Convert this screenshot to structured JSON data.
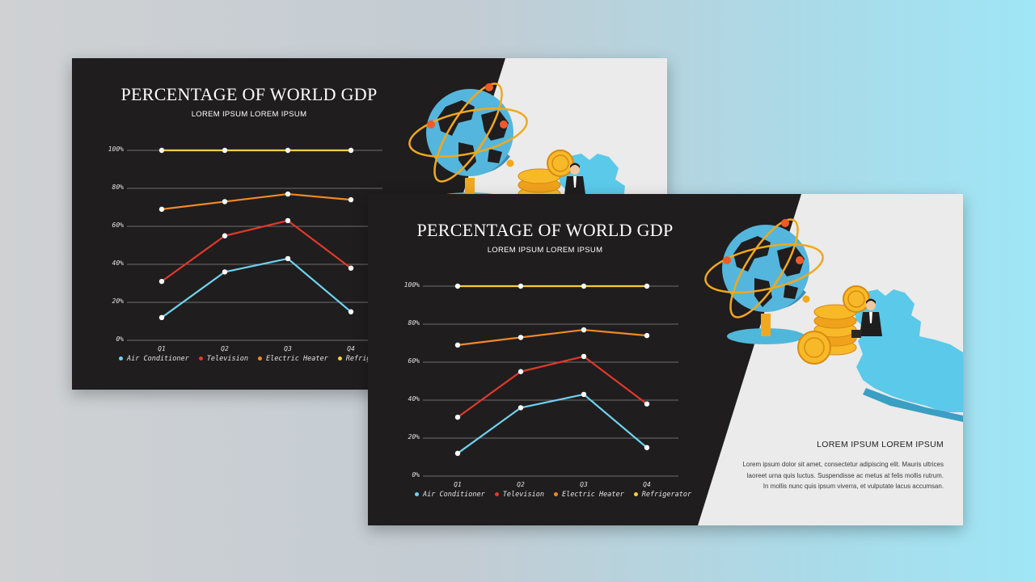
{
  "slides": [
    {
      "title": "PERCENTAGE OF WORLD GDP",
      "subtitle": "LOREM IPSUM LOREM IPSUM",
      "side_heading": "",
      "side_body": ""
    },
    {
      "title": "PERCENTAGE OF WORLD GDP",
      "subtitle": "LOREM IPSUM LOREM IPSUM",
      "side_heading": "LOREM IPSUM LOREM IPSUM",
      "side_body": "Lorem ipsum dolor sit amet, consectetur adipiscing elit. Mauris ultrices laoreet urna quis luctus. Suspendisse ac metus at felis mollis rutrum. In mollis nunc quis ipsum viverra, et vulputate lacus accumsan."
    }
  ],
  "colors": {
    "slide_dark": "#1f1d1e",
    "slide_light": "#ebebeb",
    "grid": "#8a8a8a",
    "point_fill": "#ffffff"
  },
  "illustration": {
    "icons": [
      "globe-icon",
      "orbit-icon",
      "bitcoin-coin-icon",
      "businessman-icon",
      "map-icon"
    ]
  },
  "chart_data": {
    "type": "line",
    "title": "PERCENTAGE OF WORLD GDP",
    "subtitle": "LOREM IPSUM LOREM IPSUM",
    "categories": [
      "Q1",
      "Q2",
      "Q3",
      "Q4"
    ],
    "y_ticks": [
      "0%",
      "20%",
      "40%",
      "60%",
      "80%",
      "100%"
    ],
    "ylim": [
      0,
      100
    ],
    "grid": true,
    "legend_position": "bottom",
    "series": [
      {
        "name": "Air Conditioner",
        "color": "#6fd3ef",
        "values": [
          12,
          36,
          43,
          15
        ]
      },
      {
        "name": "Television",
        "color": "#e0392b",
        "values": [
          31,
          55,
          63,
          38
        ]
      },
      {
        "name": "Electric Heater",
        "color": "#f08a24",
        "values": [
          69,
          73,
          77,
          74
        ]
      },
      {
        "name": "Refrigerator",
        "color": "#f6cf3a",
        "values": [
          100,
          100,
          100,
          100
        ]
      }
    ]
  }
}
